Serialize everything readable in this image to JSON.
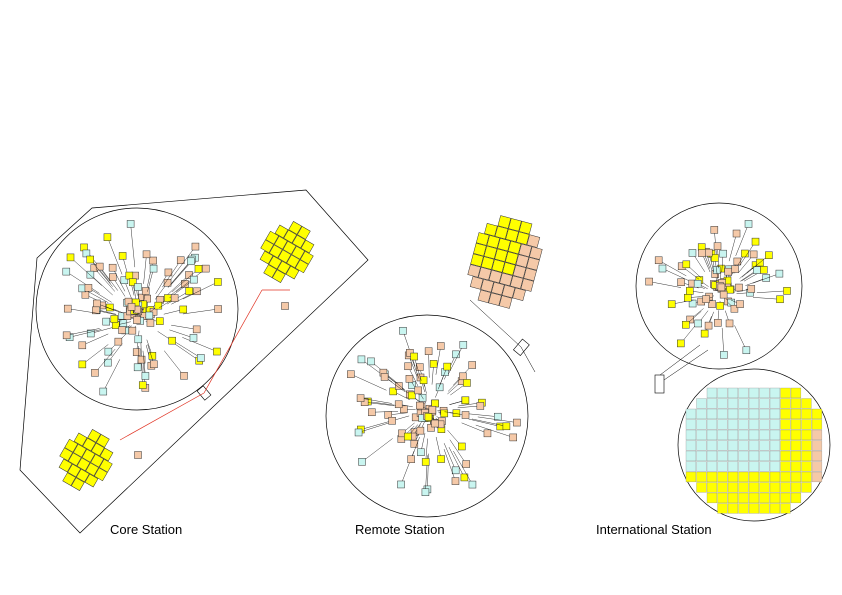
{
  "colors": {
    "hba": "#ffff00",
    "lba": "#f5c9a8",
    "aux": "#c9f5f0",
    "line": "#000000",
    "fiber": "#e03020"
  },
  "stations": [
    {
      "id": "core",
      "label": "Core Station"
    },
    {
      "id": "remote",
      "label": "Remote Station"
    },
    {
      "id": "intl",
      "label": "International Station"
    }
  ]
}
